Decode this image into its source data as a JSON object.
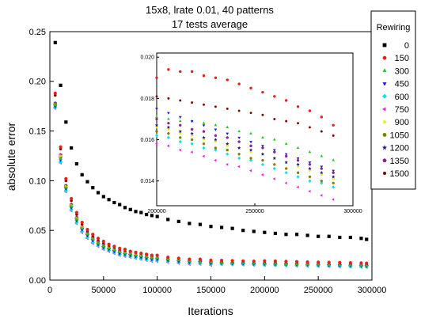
{
  "chart_data": {
    "type": "scatter",
    "title": "15x8, lrate 0.01, 40 patterns",
    "subtitle": "17 tests average",
    "xlabel": "Iterations",
    "ylabel": "absolute error",
    "xlim": [
      0,
      300000
    ],
    "ylim": [
      0,
      0.25
    ],
    "x_ticks": [
      "0",
      "50000",
      "100000",
      "150000",
      "200000",
      "250000",
      "300000"
    ],
    "y_ticks": [
      "0.00",
      "0.05",
      "0.10",
      "0.15",
      "0.20",
      "0.25"
    ],
    "grid": false,
    "legend": {
      "title": "Rewiring",
      "placement": "top-right-outside",
      "entries": [
        {
          "label": "0",
          "color": "#000000",
          "marker": "square"
        },
        {
          "label": "150",
          "color": "#e8201c",
          "marker": "circle"
        },
        {
          "label": "300",
          "color": "#22c422",
          "marker": "triangle-up"
        },
        {
          "label": "450",
          "color": "#1a1ad8",
          "marker": "triangle-down"
        },
        {
          "label": "600",
          "color": "#10e0e0",
          "marker": "diamond"
        },
        {
          "label": "750",
          "color": "#ee22ee",
          "marker": "triangle-left"
        },
        {
          "label": "900",
          "color": "#e8e800",
          "marker": "triangle-right"
        },
        {
          "label": "1050",
          "color": "#808000",
          "marker": "hexagon"
        },
        {
          "label": "1200",
          "color": "#1a1a90",
          "marker": "star"
        },
        {
          "label": "1350",
          "color": "#902090",
          "marker": "pentagon"
        },
        {
          "label": "1500",
          "color": "#800000",
          "marker": "small-circle"
        }
      ]
    },
    "x": [
      5000,
      10000,
      15000,
      20000,
      25000,
      30000,
      35000,
      40000,
      45000,
      50000,
      55000,
      60000,
      65000,
      70000,
      75000,
      80000,
      85000,
      90000,
      95000,
      100000,
      110000,
      120000,
      130000,
      140000,
      150000,
      160000,
      170000,
      180000,
      190000,
      200000,
      210000,
      220000,
      230000,
      240000,
      250000,
      260000,
      270000,
      280000,
      290000,
      295000
    ],
    "series": [
      {
        "name": "0",
        "values": [
          0.239,
          0.196,
          0.159,
          0.133,
          0.117,
          0.106,
          0.099,
          0.093,
          0.088,
          0.084,
          0.081,
          0.078,
          0.076,
          0.073,
          0.071,
          0.069,
          0.068,
          0.066,
          0.065,
          0.064,
          0.061,
          0.059,
          0.057,
          0.056,
          0.054,
          0.053,
          0.052,
          0.05,
          0.049,
          0.048,
          0.047,
          0.046,
          0.046,
          0.045,
          0.044,
          0.044,
          0.043,
          0.043,
          0.042,
          0.041
        ]
      },
      {
        "name": "150",
        "values": [
          0.188,
          0.134,
          0.102,
          0.082,
          0.068,
          0.058,
          0.051,
          0.046,
          0.042,
          0.039,
          0.036,
          0.034,
          0.032,
          0.031,
          0.029,
          0.028,
          0.027,
          0.026,
          0.025,
          0.025,
          0.023,
          0.022,
          0.021,
          0.021,
          0.02,
          0.0198,
          0.0195,
          0.0192,
          0.019,
          0.0193,
          0.0191,
          0.0188,
          0.0185,
          0.0182,
          0.018,
          0.0178,
          0.0176,
          0.0174,
          0.0172,
          0.017
        ]
      },
      {
        "name": "300",
        "values": [
          0.176,
          0.122,
          0.093,
          0.074,
          0.061,
          0.052,
          0.046,
          0.041,
          0.037,
          0.034,
          0.032,
          0.03,
          0.028,
          0.027,
          0.026,
          0.025,
          0.024,
          0.023,
          0.022,
          0.022,
          0.021,
          0.02,
          0.019,
          0.018,
          0.018,
          0.0175,
          0.0172,
          0.017,
          0.0168,
          0.0166,
          0.0165,
          0.0163,
          0.0161,
          0.0159,
          0.0157,
          0.0155,
          0.0153,
          0.0151,
          0.0149,
          0.0148
        ]
      },
      {
        "name": "450",
        "values": [
          0.175,
          0.121,
          0.092,
          0.073,
          0.06,
          0.051,
          0.045,
          0.04,
          0.036,
          0.033,
          0.031,
          0.029,
          0.027,
          0.026,
          0.025,
          0.024,
          0.023,
          0.022,
          0.021,
          0.021,
          0.02,
          0.019,
          0.018,
          0.018,
          0.017,
          0.0172,
          0.0169,
          0.0167,
          0.0165,
          0.0163,
          0.0161,
          0.0159,
          0.0157,
          0.0155,
          0.0153,
          0.0151,
          0.0149,
          0.0147,
          0.0145,
          0.0144
        ]
      },
      {
        "name": "600",
        "values": [
          0.174,
          0.119,
          0.09,
          0.071,
          0.058,
          0.049,
          0.043,
          0.038,
          0.035,
          0.032,
          0.03,
          0.028,
          0.026,
          0.025,
          0.024,
          0.023,
          0.022,
          0.021,
          0.02,
          0.02,
          0.019,
          0.018,
          0.017,
          0.017,
          0.016,
          0.0162,
          0.016,
          0.0158,
          0.0156,
          0.0154,
          0.0152,
          0.015,
          0.0148,
          0.0146,
          0.0144,
          0.0142,
          0.014,
          0.0138,
          0.0136,
          0.0135
        ]
      },
      {
        "name": "750",
        "values": [
          0.173,
          0.118,
          0.089,
          0.07,
          0.057,
          0.048,
          0.042,
          0.037,
          0.034,
          0.031,
          0.029,
          0.027,
          0.025,
          0.024,
          0.023,
          0.022,
          0.021,
          0.02,
          0.019,
          0.019,
          0.018,
          0.017,
          0.016,
          0.016,
          0.015,
          0.0158,
          0.0156,
          0.0154,
          0.0152,
          0.015,
          0.0148,
          0.0146,
          0.0144,
          0.0142,
          0.014,
          0.0138,
          0.0136,
          0.0134,
          0.0132,
          0.013
        ]
      },
      {
        "name": "900",
        "values": [
          0.176,
          0.125,
          0.094,
          0.075,
          0.062,
          0.053,
          0.046,
          0.041,
          0.037,
          0.034,
          0.032,
          0.03,
          0.028,
          0.027,
          0.026,
          0.025,
          0.024,
          0.023,
          0.022,
          0.022,
          0.021,
          0.02,
          0.019,
          0.018,
          0.018,
          0.0167,
          0.0165,
          0.0163,
          0.0161,
          0.0159,
          0.0157,
          0.0155,
          0.0153,
          0.0151,
          0.0149,
          0.0147,
          0.0145,
          0.0143,
          0.0141,
          0.014
        ]
      },
      {
        "name": "1050",
        "values": [
          0.177,
          0.124,
          0.094,
          0.075,
          0.062,
          0.052,
          0.046,
          0.041,
          0.037,
          0.034,
          0.032,
          0.03,
          0.028,
          0.027,
          0.026,
          0.025,
          0.024,
          0.023,
          0.022,
          0.022,
          0.021,
          0.02,
          0.019,
          0.018,
          0.017,
          0.0165,
          0.0163,
          0.0161,
          0.0159,
          0.0157,
          0.0155,
          0.0153,
          0.0151,
          0.0149,
          0.0147,
          0.0145,
          0.0143,
          0.0141,
          0.0139,
          0.0138
        ]
      },
      {
        "name": "1200",
        "values": [
          0.176,
          0.123,
          0.093,
          0.074,
          0.061,
          0.052,
          0.045,
          0.04,
          0.036,
          0.033,
          0.031,
          0.029,
          0.027,
          0.026,
          0.025,
          0.024,
          0.023,
          0.022,
          0.021,
          0.021,
          0.02,
          0.019,
          0.018,
          0.018,
          0.017,
          0.0168,
          0.0166,
          0.0164,
          0.0162,
          0.016,
          0.0158,
          0.0156,
          0.0154,
          0.0152,
          0.015,
          0.0148,
          0.0146,
          0.0144,
          0.0142,
          0.0141
        ]
      },
      {
        "name": "1350",
        "values": [
          0.178,
          0.126,
          0.095,
          0.076,
          0.063,
          0.053,
          0.047,
          0.042,
          0.038,
          0.035,
          0.032,
          0.03,
          0.029,
          0.027,
          0.026,
          0.025,
          0.024,
          0.023,
          0.023,
          0.022,
          0.021,
          0.02,
          0.019,
          0.019,
          0.018,
          0.017,
          0.0168,
          0.0166,
          0.0164,
          0.0162,
          0.016,
          0.0158,
          0.0156,
          0.0154,
          0.0152,
          0.015,
          0.0148,
          0.0146,
          0.0144,
          0.0143
        ]
      },
      {
        "name": "1500",
        "values": [
          0.186,
          0.132,
          0.1,
          0.08,
          0.066,
          0.056,
          0.049,
          0.044,
          0.04,
          0.037,
          0.034,
          0.032,
          0.03,
          0.029,
          0.028,
          0.027,
          0.026,
          0.025,
          0.024,
          0.024,
          0.022,
          0.021,
          0.02,
          0.02,
          0.019,
          0.0183,
          0.018,
          0.0178,
          0.0176,
          0.0178,
          0.0176,
          0.0174,
          0.0172,
          0.017,
          0.0168,
          0.0166,
          0.0164,
          0.0162,
          0.016,
          0.0158
        ]
      }
    ],
    "inset": {
      "type": "scatter",
      "placement": "upper-middle",
      "xlim": [
        200000,
        300000
      ],
      "ylim": [
        0.0128,
        0.0202
      ],
      "x_ticks": [
        "200000",
        "250000",
        "300000"
      ],
      "y_ticks": [
        "0.014",
        "0.016",
        "0.018",
        "0.020"
      ],
      "x": [
        200000,
        206000,
        212000,
        218000,
        224000,
        230000,
        236000,
        242000,
        248000,
        254000,
        260000,
        266000,
        272000,
        278000,
        284000,
        290000
      ],
      "series": [
        {
          "name": "150",
          "values": [
            0.019,
            0.0194,
            0.0193,
            0.0193,
            0.0191,
            0.019,
            0.0189,
            0.0187,
            0.0185,
            0.0183,
            0.0181,
            0.0179,
            0.0176,
            0.0174,
            0.0171,
            0.0167
          ]
        },
        {
          "name": "300",
          "values": [
            0.0171,
            0.017,
            0.0169,
            0.0169,
            0.0168,
            0.0167,
            0.0166,
            0.0164,
            0.0163,
            0.0161,
            0.016,
            0.0158,
            0.0156,
            0.0154,
            0.0152,
            0.015
          ]
        },
        {
          "name": "450",
          "values": [
            0.0175,
            0.0173,
            0.0171,
            0.0169,
            0.0167,
            0.0165,
            0.0163,
            0.0161,
            0.0159,
            0.0157,
            0.0155,
            0.0153,
            0.0151,
            0.0149,
            0.0147,
            0.0145
          ]
        },
        {
          "name": "600",
          "values": [
            0.0162,
            0.0161,
            0.0159,
            0.0158,
            0.0156,
            0.0155,
            0.0153,
            0.0151,
            0.015,
            0.0148,
            0.0146,
            0.0144,
            0.0142,
            0.014,
            0.0139,
            0.0137
          ]
        },
        {
          "name": "750",
          "values": [
            0.0158,
            0.0157,
            0.0155,
            0.0154,
            0.0152,
            0.015,
            0.0148,
            0.0147,
            0.0145,
            0.0143,
            0.0141,
            0.0139,
            0.0137,
            0.0135,
            0.0133,
            0.0131
          ]
        },
        {
          "name": "900",
          "values": [
            0.0166,
            0.0165,
            0.0163,
            0.0162,
            0.016,
            0.0159,
            0.0157,
            0.0156,
            0.0154,
            0.0153,
            0.0151,
            0.0149,
            0.0147,
            0.0145,
            0.0143,
            0.0141
          ]
        },
        {
          "name": "1050",
          "values": [
            0.0164,
            0.0163,
            0.0161,
            0.016,
            0.0158,
            0.0156,
            0.0155,
            0.0153,
            0.0151,
            0.015,
            0.0148,
            0.0146,
            0.0144,
            0.0142,
            0.014,
            0.0139
          ]
        },
        {
          "name": "1200",
          "values": [
            0.0167,
            0.0166,
            0.0164,
            0.0163,
            0.0161,
            0.016,
            0.0158,
            0.0156,
            0.0155,
            0.0153,
            0.0151,
            0.0149,
            0.0148,
            0.0146,
            0.0144,
            0.0142
          ]
        },
        {
          "name": "1350",
          "values": [
            0.017,
            0.0168,
            0.0167,
            0.0165,
            0.0164,
            0.0162,
            0.0161,
            0.0159,
            0.0157,
            0.0156,
            0.0154,
            0.0152,
            0.015,
            0.0148,
            0.0146,
            0.0144
          ]
        },
        {
          "name": "1500",
          "values": [
            0.0181,
            0.018,
            0.0179,
            0.0178,
            0.0177,
            0.0176,
            0.0175,
            0.0174,
            0.0173,
            0.0172,
            0.017,
            0.0169,
            0.0168,
            0.0166,
            0.0164,
            0.0162
          ]
        }
      ]
    }
  }
}
